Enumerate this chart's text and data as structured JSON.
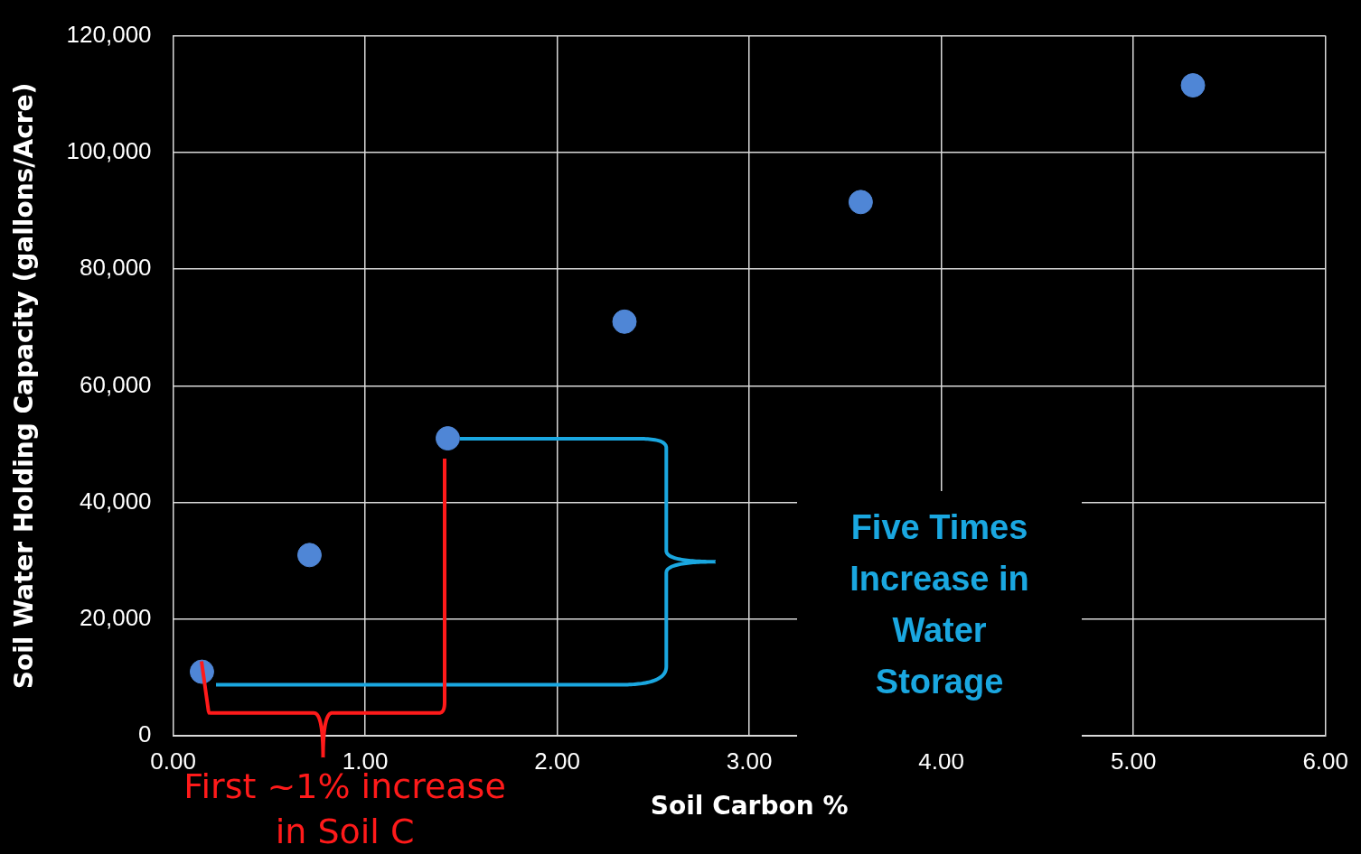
{
  "chart_data": {
    "type": "scatter",
    "xlabel": "Soil Carbon %",
    "ylabel": "Soil Water Holding Capacity (gallons/Acre)",
    "x": [
      0.15,
      0.71,
      1.43,
      2.35,
      3.58,
      5.31
    ],
    "series": [
      {
        "color": "#4f86d6",
        "values": [
          11000,
          31000,
          51000,
          71000,
          91500,
          111500
        ]
      }
    ],
    "xlim": [
      0,
      6
    ],
    "xticks": [
      {
        "value": 0,
        "label": "0.00"
      },
      {
        "value": 1,
        "label": "1.00"
      },
      {
        "value": 2,
        "label": "2.00"
      },
      {
        "value": 3,
        "label": "3.00"
      },
      {
        "value": 4,
        "label": "4.00"
      },
      {
        "value": 5,
        "label": "5.00"
      },
      {
        "value": 6,
        "label": "6.00"
      }
    ],
    "ylim": [
      0,
      120000
    ],
    "yticks": [
      0,
      {
        "value": 20000,
        "label": "20,000"
      },
      {
        "value": 40000,
        "label": "40,000"
      },
      {
        "value": 60000,
        "label": "60,000"
      },
      {
        "value": 80000,
        "label": "80,000"
      },
      {
        "value": 100000,
        "label": "100,000"
      },
      {
        "value": 120000,
        "label": "120,000"
      }
    ],
    "grid": true,
    "legend": false,
    "marker": "circle",
    "annotations": [
      "Five Times Increase in Water Storage",
      "First ~1% increase in Soil C"
    ]
  }
}
